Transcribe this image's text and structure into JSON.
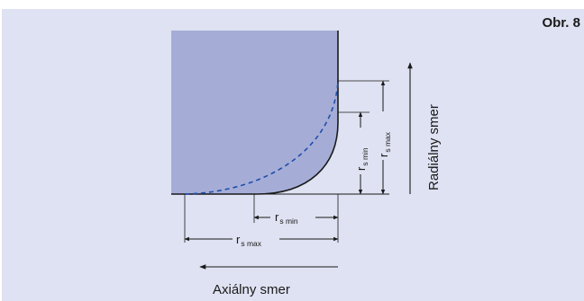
{
  "figure_label": "Obr. 8",
  "direction_labels": {
    "radial": "Radiálny smer",
    "axial": "Axiálny smer"
  },
  "dimensions": {
    "radial_min": {
      "main": "r",
      "sub": "s min"
    },
    "radial_max": {
      "main": "r",
      "sub": "s max"
    },
    "axial_min": {
      "main": "r",
      "sub": "s min"
    },
    "axial_max": {
      "main": "r",
      "sub": "s max"
    }
  },
  "colors": {
    "background_panel": "#dfe2f2",
    "fill_shape": "#a5add7",
    "dashed_curve": "#1f4fa8",
    "outline": "#1a1a1a"
  }
}
